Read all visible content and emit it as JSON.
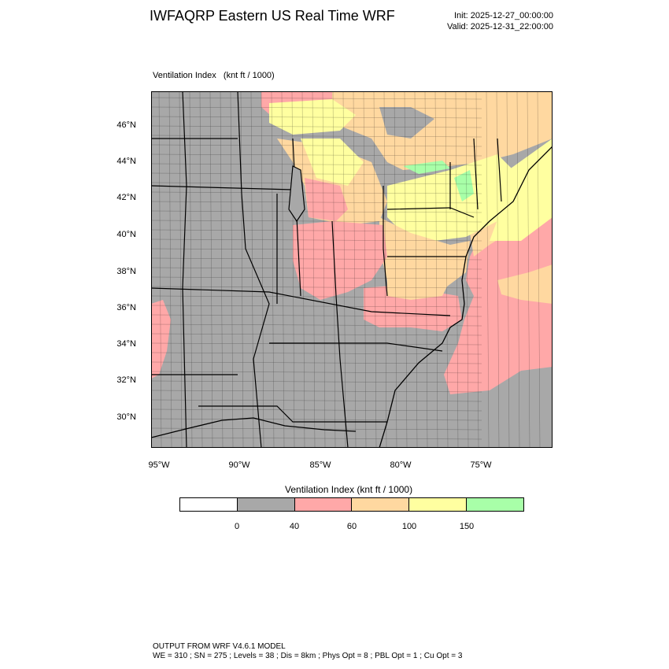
{
  "header": {
    "title": "IWFAQRP Eastern US Real Time WRF",
    "init": "Init: 2025-12-27_00:00:00",
    "valid": "Valid: 2025-12-31_22:00:00"
  },
  "field": {
    "name": "Ventilation Index",
    "units": "(knt ft / 1000)"
  },
  "axes": {
    "lat_labels": [
      "46°N",
      "44°N",
      "42°N",
      "40°N",
      "38°N",
      "36°N",
      "34°N",
      "32°N",
      "30°N"
    ],
    "lon_labels": [
      "95°W",
      "90°W",
      "85°W",
      "80°W",
      "75°W"
    ]
  },
  "colorbar": {
    "title": "Ventilation Index  (knt ft / 1000)",
    "labels": [
      "0",
      "40",
      "60",
      "100",
      "150"
    ],
    "colors": [
      "#ffffff",
      "#a8a8a8",
      "#ffa8a8",
      "#ffd8a0",
      "#ffffa0",
      "#a8ffa8"
    ]
  },
  "footer": {
    "line1": "OUTPUT FROM WRF V4.6.1 MODEL",
    "line2": "WE = 310 ; SN = 275 ; Levels = 38 ; Dis = 8km ; Phys Opt = 8 ; PBL Opt = 1 ; Cu Opt = 3"
  },
  "map_colors": {
    "gray": "#a8a8a8",
    "pink": "#ffa8a8",
    "orange": "#ffd8a0",
    "yellow": "#ffffa0",
    "green": "#a8ffa8"
  }
}
